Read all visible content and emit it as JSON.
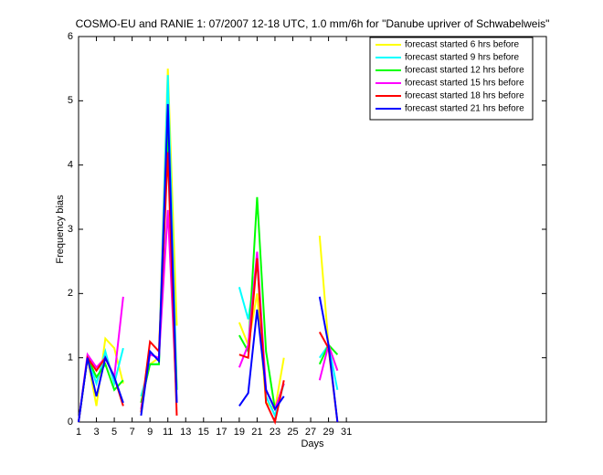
{
  "chart_data": {
    "type": "line",
    "title": "COSMO-EU and RANIE 1: 07/2007 12-18 UTC, 1.0 mm/6h for \"Danube upriver of Schwabelweis\"",
    "x_label": "Days",
    "y_label": "Frequency bias",
    "x": [
      1,
      2,
      3,
      4,
      5,
      6,
      7,
      8,
      9,
      10,
      11,
      12,
      13,
      14,
      15,
      16,
      17,
      18,
      19,
      20,
      21,
      22,
      23,
      24,
      25,
      26,
      27,
      28,
      29,
      30
    ],
    "series": [
      {
        "name": "forecast started 6 hrs before",
        "color": "#ffff00",
        "values": [
          0,
          1.0,
          0.25,
          1.3,
          1.15,
          0.6,
          null,
          0.3,
          0.9,
          1.0,
          5.5,
          1.5,
          null,
          null,
          null,
          null,
          null,
          null,
          1.55,
          1.2,
          2.0,
          0.3,
          0.2,
          1.0,
          null,
          null,
          null,
          2.9,
          1.2,
          0.8
        ]
      },
      {
        "name": "forecast started 9 hrs before",
        "color": "#00ffff",
        "values": [
          0,
          1.0,
          0.6,
          1.1,
          0.6,
          1.15,
          null,
          0.4,
          0.9,
          0.9,
          5.4,
          0.5,
          null,
          null,
          null,
          null,
          null,
          null,
          2.1,
          1.6,
          2.5,
          0.4,
          0.1,
          0.6,
          null,
          null,
          null,
          1.0,
          1.2,
          0.5
        ]
      },
      {
        "name": "forecast started 12 hrs before",
        "color": "#00ff00",
        "values": [
          0,
          1.0,
          0.7,
          0.9,
          0.5,
          0.65,
          null,
          0.3,
          0.9,
          0.9,
          4.5,
          0.5,
          null,
          null,
          null,
          null,
          null,
          null,
          1.35,
          1.1,
          3.5,
          1.1,
          0.2,
          0.6,
          null,
          null,
          null,
          0.9,
          1.2,
          1.05
        ]
      },
      {
        "name": "forecast started 15 hrs before",
        "color": "#ff00ff",
        "values": [
          0,
          1.05,
          0.85,
          1.0,
          0.7,
          1.95,
          null,
          0.2,
          1.05,
          1.0,
          3.3,
          0.3,
          null,
          null,
          null,
          null,
          null,
          null,
          0.85,
          1.2,
          2.65,
          0.5,
          0.2,
          0.6,
          null,
          null,
          null,
          0.65,
          1.2,
          0.8
        ]
      },
      {
        "name": "forecast started 18 hrs before",
        "color": "#ff0000",
        "values": [
          0,
          1.0,
          0.8,
          1.0,
          0.7,
          0.25,
          null,
          0.15,
          1.25,
          1.1,
          4.2,
          0.1,
          null,
          null,
          null,
          null,
          null,
          null,
          1.05,
          1.0,
          2.55,
          0.3,
          0.0,
          0.65,
          null,
          null,
          null,
          1.4,
          1.15,
          0
        ]
      },
      {
        "name": "forecast started 21 hrs before",
        "color": "#0000ff",
        "values": [
          0,
          1.0,
          0.4,
          1.0,
          0.7,
          0.3,
          null,
          0.1,
          1.1,
          0.95,
          4.95,
          0.3,
          null,
          null,
          null,
          null,
          null,
          null,
          0.25,
          0.45,
          1.75,
          0.5,
          0.2,
          0.4,
          null,
          null,
          null,
          1.95,
          1.2,
          0
        ]
      }
    ],
    "xlim": [
      1,
      53.4
    ],
    "ylim": [
      0,
      6
    ],
    "xticks": [
      1,
      3,
      5,
      7,
      9,
      11,
      13,
      15,
      17,
      19,
      21,
      23,
      25,
      27,
      29,
      31
    ],
    "yticks": [
      0,
      1,
      2,
      3,
      4,
      5,
      6
    ],
    "legend": "upper right"
  }
}
